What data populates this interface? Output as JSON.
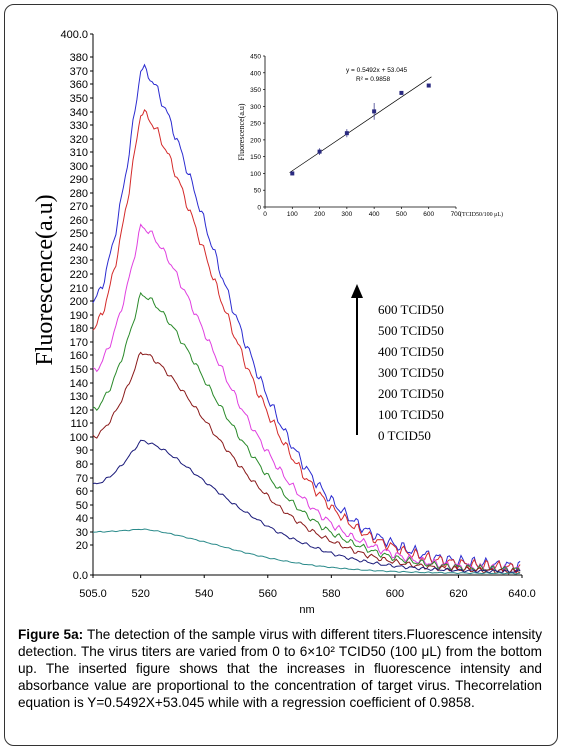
{
  "caption": {
    "label": "Figure 5a:",
    "text": "The detection of the sample virus with different titers.Fluorescence intensity detection. The virus titers are varied from 0 to 6×10² TCID50 (100 μL) from the bottom up. The inserted figure shows that the increases in fluorescence intensity and absorbance value are proportional to the concentration of target virus. Thecorrelation equation is Y=0.5492X+53.045 while with a regression coefficient of 0.9858."
  },
  "chart_data": [
    {
      "type": "line",
      "xlabel": "nm",
      "ylabel": "Fluorescence(a.u)",
      "xlim": [
        505,
        640
      ],
      "ylim": [
        0,
        400
      ],
      "x_ticks": [
        "505.0",
        "520",
        "540",
        "560",
        "580",
        "600",
        "620",
        "640.0"
      ],
      "y_ticks": [
        "0.0",
        "20",
        "30",
        "40",
        "50",
        "60",
        "70",
        "80",
        "90",
        "100",
        "110",
        "120",
        "130",
        "140",
        "150",
        "160",
        "170",
        "180",
        "190",
        "200",
        "210",
        "220",
        "230",
        "240",
        "250",
        "260",
        "270",
        "280",
        "290",
        "300",
        "310",
        "320",
        "330",
        "340",
        "350",
        "360",
        "370",
        "380",
        "400.0"
      ],
      "legend": [
        "600 TCID50",
        "500 TCID50",
        "400 TCID50",
        "300 TCID50",
        "200 TCID50",
        "100 TCID50",
        "0 TCID50"
      ],
      "series": [
        {
          "name": "600 TCID50",
          "color": "#2b2bd0",
          "peak": 372,
          "start": 200,
          "end": 5
        },
        {
          "name": "500 TCID50",
          "color": "#d42a2a",
          "peak": 340,
          "start": 180,
          "end": 4
        },
        {
          "name": "400 TCID50",
          "color": "#e040e0",
          "peak": 255,
          "start": 148,
          "end": 3
        },
        {
          "name": "300 TCID50",
          "color": "#2a8a2a",
          "peak": 205,
          "start": 120,
          "end": 3
        },
        {
          "name": "200 TCID50",
          "color": "#8a1a1a",
          "peak": 162,
          "start": 100,
          "end": 2
        },
        {
          "name": "100 TCID50",
          "color": "#1a1a7a",
          "peak": 97,
          "start": 65,
          "end": 2
        },
        {
          "name": "0 TCID50",
          "color": "#2a8a8a",
          "peak": 32,
          "start": 30,
          "end": 1
        }
      ]
    },
    {
      "type": "scatter",
      "ylabel": "Fluorescence(a.u)",
      "xlabel": "(TCID50/100 μL)",
      "x_ticks": [
        "0",
        "100",
        "200",
        "300",
        "400",
        "500",
        "600",
        "700"
      ],
      "y_ticks": [
        "0",
        "50",
        "100",
        "150",
        "200",
        "250",
        "300",
        "350",
        "400",
        "450"
      ],
      "xlim": [
        0,
        700
      ],
      "ylim": [
        0,
        450
      ],
      "equation": "y = 0.5492x + 53.045",
      "r2": "R² = 0.9858",
      "x": [
        100,
        200,
        300,
        400,
        500,
        600
      ],
      "y": [
        100,
        165,
        220,
        285,
        340,
        362
      ],
      "err": [
        5,
        10,
        12,
        25,
        5,
        3
      ],
      "fit": {
        "slope": 0.5492,
        "intercept": 53.045
      }
    }
  ]
}
